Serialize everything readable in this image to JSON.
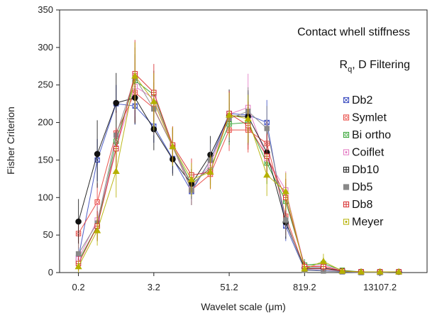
{
  "chart_data": {
    "type": "line",
    "title": "",
    "xlabel": "Wavelet scale (μm)",
    "ylabel": "Fisher Criterion",
    "ylim": [
      0,
      350
    ],
    "yticks": [
      0,
      50,
      100,
      150,
      200,
      250,
      300,
      350
    ],
    "x_tick_labels": [
      "0.2",
      "3.2",
      "51.2",
      "819.2",
      "13107.2"
    ],
    "x_tick_positions": [
      1,
      5,
      9,
      13,
      17
    ],
    "x": [
      1,
      2,
      3,
      4,
      5,
      6,
      7,
      8,
      9,
      10,
      11,
      12,
      13,
      14,
      15,
      16,
      17,
      18
    ],
    "annotations": {
      "line1": "Contact whell stiffness",
      "line2_main": "R",
      "line2_sub": "q",
      "line2_rest": ", D Filtering"
    },
    "legend_position": "right",
    "grid": false,
    "series": [
      {
        "name": "Db2",
        "color": "#3b4cc0",
        "marker": "square-x",
        "values": [
          20,
          150,
          225,
          222,
          195,
          152,
          108,
          150,
          212,
          210,
          200,
          62,
          4,
          3,
          1,
          0,
          0,
          1
        ],
        "errors": [
          14,
          28,
          25,
          25,
          22,
          20,
          18,
          22,
          28,
          30,
          30,
          20,
          5,
          4,
          2,
          1,
          1,
          1
        ]
      },
      {
        "name": "Symlet",
        "color": "#e8413b",
        "marker": "square-circle",
        "values": [
          52,
          94,
          186,
          240,
          219,
          168,
          110,
          131,
          190,
          190,
          172,
          75,
          5,
          5,
          2,
          1,
          1,
          1
        ],
        "errors": [
          20,
          25,
          30,
          40,
          35,
          25,
          20,
          20,
          28,
          30,
          30,
          25,
          6,
          5,
          3,
          2,
          1,
          1
        ]
      },
      {
        "name": "Bi ortho",
        "color": "#2ca02c",
        "marker": "square-circle",
        "values": [
          15,
          62,
          175,
          256,
          237,
          168,
          118,
          139,
          198,
          200,
          146,
          95,
          10,
          12,
          3,
          1,
          1,
          1
        ],
        "errors": [
          12,
          20,
          28,
          35,
          32,
          24,
          20,
          22,
          28,
          30,
          28,
          25,
          8,
          8,
          3,
          2,
          1,
          1
        ]
      },
      {
        "name": "Coiflet",
        "color": "#e377c2",
        "marker": "square-dot",
        "values": [
          18,
          70,
          166,
          248,
          232,
          168,
          115,
          143,
          211,
          220,
          152,
          110,
          8,
          10,
          2,
          1,
          1,
          1
        ],
        "errors": [
          12,
          22,
          28,
          40,
          35,
          25,
          20,
          22,
          30,
          45,
          30,
          25,
          7,
          7,
          3,
          2,
          1,
          1
        ]
      },
      {
        "name": "Db10",
        "color": "#111111",
        "marker": "circle",
        "values": [
          68,
          158,
          226,
          233,
          191,
          151,
          118,
          157,
          209,
          208,
          160,
          67,
          6,
          6,
          2,
          1,
          1,
          1
        ],
        "errors": [
          30,
          45,
          40,
          35,
          28,
          22,
          20,
          25,
          35,
          35,
          30,
          22,
          6,
          5,
          3,
          2,
          1,
          1
        ]
      },
      {
        "name": "Db5",
        "color": "#888888",
        "marker": "square",
        "values": [
          25,
          66,
          183,
          260,
          218,
          168,
          110,
          150,
          205,
          215,
          192,
          70,
          3,
          2,
          1,
          0,
          0,
          1
        ],
        "errors": [
          14,
          22,
          30,
          40,
          35,
          25,
          20,
          22,
          30,
          32,
          30,
          22,
          4,
          3,
          2,
          1,
          1,
          1
        ]
      },
      {
        "name": "Db8",
        "color": "#d62728",
        "marker": "square-plus",
        "values": [
          12,
          62,
          165,
          265,
          240,
          170,
          130,
          134,
          212,
          196,
          155,
          100,
          8,
          8,
          2,
          1,
          1,
          1
        ],
        "errors": [
          10,
          20,
          28,
          45,
          38,
          25,
          22,
          22,
          30,
          32,
          30,
          25,
          7,
          6,
          3,
          2,
          1,
          1
        ]
      },
      {
        "name": "Meyer",
        "color": "#b5b000",
        "marker": "triangle",
        "values": [
          8,
          56,
          135,
          262,
          228,
          168,
          124,
          134,
          210,
          205,
          130,
          108,
          5,
          15,
          2,
          1,
          1,
          1
        ],
        "errors": [
          8,
          20,
          35,
          45,
          38,
          26,
          22,
          22,
          30,
          32,
          28,
          25,
          6,
          10,
          3,
          2,
          1,
          1
        ]
      }
    ]
  }
}
